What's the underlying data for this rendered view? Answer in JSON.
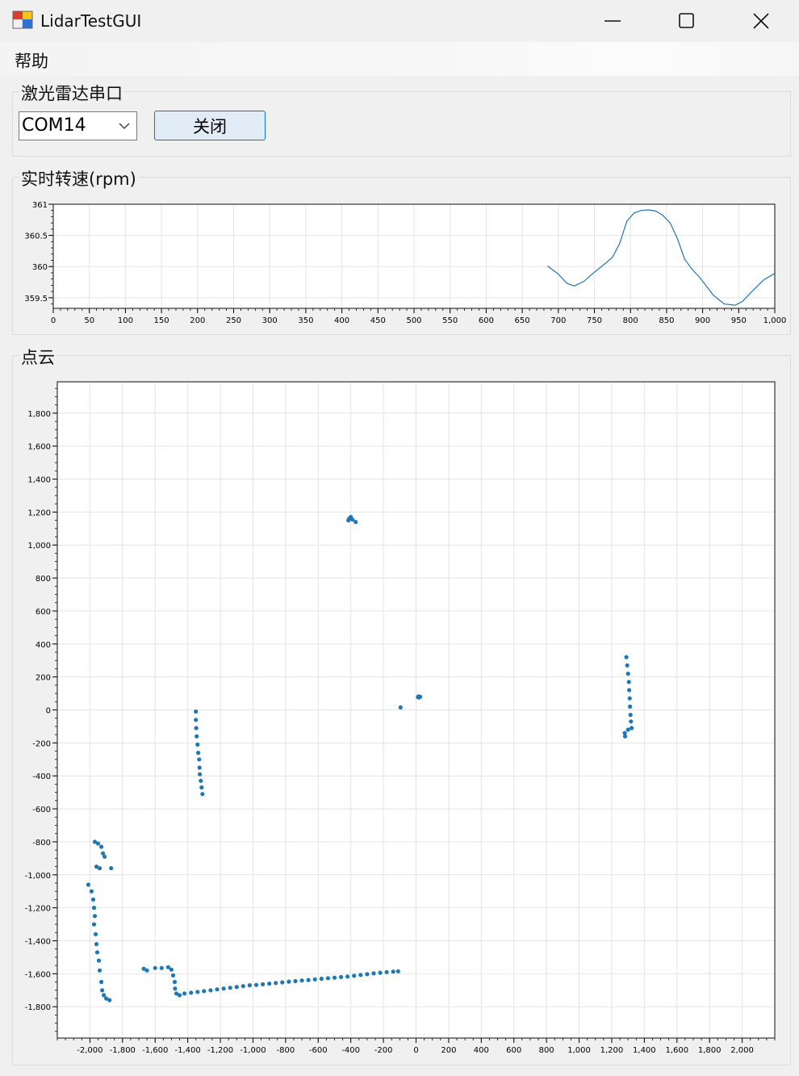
{
  "window": {
    "title": "LidarTestGUI",
    "controls": [
      "minimize",
      "maximize",
      "close"
    ]
  },
  "menu": {
    "items": [
      "帮助"
    ]
  },
  "serial_group": {
    "title": "激光雷达串口",
    "port_value": "COM14",
    "close_button_label": "关闭"
  },
  "rpm_group": {
    "title": "实时转速(rpm)"
  },
  "cloud_group": {
    "title": "点云"
  },
  "colors": {
    "series": "#1f77b4",
    "grid": "#e4e4e4",
    "axis": "#000000",
    "button_bg": "#e1ecf7",
    "button_border": "#0078d4"
  },
  "chart_data": [
    {
      "type": "line",
      "xlim": [
        0,
        1000
      ],
      "ylim": [
        359.33,
        361
      ],
      "x_ticks": [
        0,
        50,
        100,
        150,
        200,
        250,
        300,
        350,
        400,
        450,
        500,
        550,
        600,
        650,
        700,
        750,
        800,
        850,
        900,
        950,
        1000
      ],
      "x_tick_labels": [
        "0",
        "50",
        "100",
        "150",
        "200",
        "250",
        "300",
        "350",
        "400",
        "450",
        "500",
        "550",
        "600",
        "650",
        "700",
        "750",
        "800",
        "850",
        "900",
        "950",
        "1,000"
      ],
      "y_ticks": [
        359.5,
        360,
        360.5,
        361
      ],
      "y_tick_labels": [
        "359.5",
        "360",
        "360.5",
        "361"
      ],
      "grid": true,
      "series": [
        {
          "color": "#1f77b4",
          "points": [
            [
              685,
              360.01
            ],
            [
              700,
              359.88
            ],
            [
              712,
              359.73
            ],
            [
              722,
              359.69
            ],
            [
              735,
              359.76
            ],
            [
              750,
              359.91
            ],
            [
              765,
              360.05
            ],
            [
              775,
              360.15
            ],
            [
              785,
              360.37
            ],
            [
              795,
              360.73
            ],
            [
              805,
              360.86
            ],
            [
              815,
              360.9
            ],
            [
              825,
              360.91
            ],
            [
              835,
              360.89
            ],
            [
              845,
              360.82
            ],
            [
              855,
              360.7
            ],
            [
              865,
              360.45
            ],
            [
              875,
              360.12
            ],
            [
              885,
              359.96
            ],
            [
              895,
              359.84
            ],
            [
              905,
              359.69
            ],
            [
              915,
              359.54
            ],
            [
              930,
              359.4
            ],
            [
              945,
              359.38
            ],
            [
              955,
              359.44
            ],
            [
              970,
              359.62
            ],
            [
              985,
              359.79
            ],
            [
              1000,
              359.89
            ]
          ]
        }
      ]
    },
    {
      "type": "scatter",
      "xlim": [
        -2200,
        2200
      ],
      "ylim": [
        -1990,
        1990
      ],
      "x_ticks": [
        -2000,
        -1800,
        -1600,
        -1400,
        -1200,
        -1000,
        -800,
        -600,
        -400,
        -200,
        0,
        200,
        400,
        600,
        800,
        1000,
        1200,
        1400,
        1600,
        1800,
        2000
      ],
      "x_tick_labels": [
        "-2,000",
        "-1,800",
        "-1,600",
        "-1,400",
        "-1,200",
        "-1,000",
        "-800",
        "-600",
        "-400",
        "-200",
        "0",
        "200",
        "400",
        "600",
        "800",
        "1,000",
        "1,200",
        "1,400",
        "1,600",
        "1,800",
        "2,000"
      ],
      "y_ticks": [
        -1800,
        -1600,
        -1400,
        -1200,
        -1000,
        -800,
        -600,
        -400,
        -200,
        0,
        200,
        400,
        600,
        800,
        1000,
        1200,
        1400,
        1600,
        1800
      ],
      "y_tick_labels": [
        "-1,800",
        "-1,600",
        "-1,400",
        "-1,200",
        "-1,000",
        "-800",
        "-600",
        "-400",
        "-200",
        "0",
        "200",
        "400",
        "600",
        "800",
        "1,000",
        "1,200",
        "1,400",
        "1,600",
        "1,800"
      ],
      "grid": true,
      "series": [
        {
          "color": "#1f77b4",
          "points": [
            [
              -410,
              1160
            ],
            [
              -400,
              1170
            ],
            [
              -415,
              1150
            ],
            [
              -390,
              1155
            ],
            [
              -370,
              1140
            ],
            [
              -95,
              15
            ],
            [
              15,
              82
            ],
            [
              20,
              76
            ],
            [
              25,
              80
            ],
            [
              12,
              78
            ],
            [
              -1350,
              -10
            ],
            [
              -1350,
              -60
            ],
            [
              -1348,
              -110
            ],
            [
              -1345,
              -160
            ],
            [
              -1340,
              -210
            ],
            [
              -1336,
              -260
            ],
            [
              -1330,
              -300
            ],
            [
              -1328,
              -350
            ],
            [
              -1326,
              -390
            ],
            [
              -1320,
              -430
            ],
            [
              -1315,
              -470
            ],
            [
              -1310,
              -510
            ],
            [
              1290,
              320
            ],
            [
              1295,
              270
            ],
            [
              1300,
              220
            ],
            [
              1305,
              170
            ],
            [
              1307,
              120
            ],
            [
              1310,
              70
            ],
            [
              1312,
              20
            ],
            [
              1315,
              -30
            ],
            [
              1318,
              -70
            ],
            [
              1322,
              -110
            ],
            [
              1300,
              -120
            ],
            [
              1280,
              -140
            ],
            [
              1282,
              -160
            ],
            [
              -1970,
              -800
            ],
            [
              -1950,
              -810
            ],
            [
              -1930,
              -830
            ],
            [
              -1920,
              -870
            ],
            [
              -1910,
              -890
            ],
            [
              -1960,
              -950
            ],
            [
              -1940,
              -960
            ],
            [
              -1870,
              -960
            ],
            [
              -2010,
              -1060
            ],
            [
              -1990,
              -1100
            ],
            [
              -1980,
              -1150
            ],
            [
              -1975,
              -1200
            ],
            [
              -1970,
              -1250
            ],
            [
              -1975,
              -1300
            ],
            [
              -1965,
              -1360
            ],
            [
              -1960,
              -1420
            ],
            [
              -1955,
              -1470
            ],
            [
              -1945,
              -1520
            ],
            [
              -1940,
              -1580
            ],
            [
              -1930,
              -1650
            ],
            [
              -1925,
              -1700
            ],
            [
              -1915,
              -1730
            ],
            [
              -1900,
              -1750
            ],
            [
              -1880,
              -1760
            ],
            [
              -1670,
              -1570
            ],
            [
              -1650,
              -1580
            ],
            [
              -1600,
              -1565
            ],
            [
              -1560,
              -1565
            ],
            [
              -1520,
              -1560
            ],
            [
              -1500,
              -1575
            ],
            [
              -1490,
              -1610
            ],
            [
              -1480,
              -1650
            ],
            [
              -1478,
              -1690
            ],
            [
              -1470,
              -1720
            ],
            [
              -1450,
              -1730
            ],
            [
              -1420,
              -1720
            ],
            [
              -1380,
              -1715
            ],
            [
              -1340,
              -1710
            ],
            [
              -1300,
              -1705
            ],
            [
              -1260,
              -1700
            ],
            [
              -1220,
              -1695
            ],
            [
              -1180,
              -1690
            ],
            [
              -1140,
              -1685
            ],
            [
              -1100,
              -1680
            ],
            [
              -1060,
              -1675
            ],
            [
              -1020,
              -1670
            ],
            [
              -980,
              -1668
            ],
            [
              -940,
              -1664
            ],
            [
              -900,
              -1660
            ],
            [
              -860,
              -1656
            ],
            [
              -820,
              -1652
            ],
            [
              -780,
              -1648
            ],
            [
              -740,
              -1645
            ],
            [
              -700,
              -1641
            ],
            [
              -660,
              -1638
            ],
            [
              -620,
              -1634
            ],
            [
              -580,
              -1630
            ],
            [
              -540,
              -1627
            ],
            [
              -500,
              -1624
            ],
            [
              -460,
              -1620
            ],
            [
              -420,
              -1617
            ],
            [
              -380,
              -1612
            ],
            [
              -340,
              -1607
            ],
            [
              -300,
              -1603
            ],
            [
              -260,
              -1598
            ],
            [
              -220,
              -1594
            ],
            [
              -180,
              -1590
            ],
            [
              -140,
              -1587
            ],
            [
              -110,
              -1585
            ]
          ]
        }
      ]
    }
  ]
}
